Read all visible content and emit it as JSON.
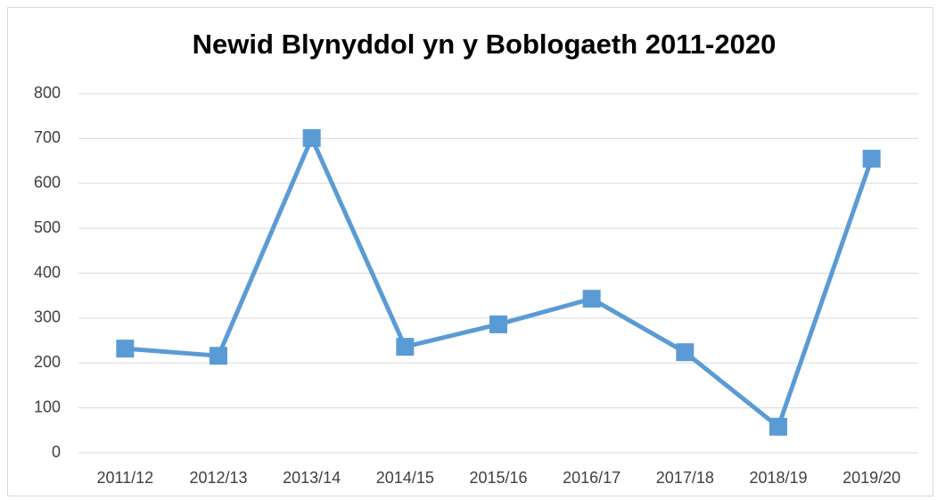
{
  "chart_data": {
    "type": "line",
    "title": "Newid Blynyddol yn y Boblogaeth 2011-2020",
    "categories": [
      "2011/12",
      "2012/13",
      "2013/14",
      "2014/15",
      "2015/16",
      "2016/17",
      "2017/18",
      "2018/19",
      "2019/20"
    ],
    "series": [
      {
        "name": "Newid Blynyddol",
        "color": "#5b9bd5",
        "values": [
          232,
          216,
          701,
          236,
          286,
          343,
          224,
          58,
          655
        ]
      }
    ],
    "ylim": [
      0,
      800
    ],
    "yticks": [
      0,
      100,
      200,
      300,
      400,
      500,
      600,
      700,
      800
    ],
    "grid": true
  }
}
